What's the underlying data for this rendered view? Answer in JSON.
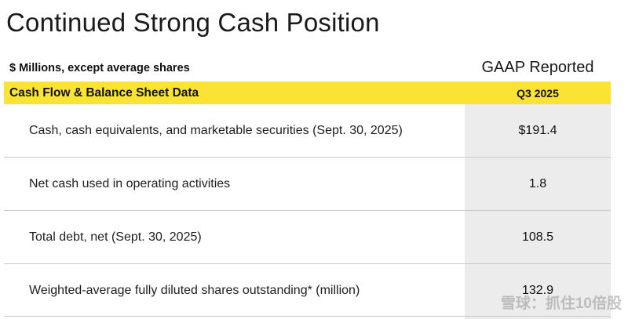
{
  "title": "Continued Strong Cash Position",
  "units_note": "$ Millions, except average shares",
  "column_header": "GAAP Reported",
  "section": {
    "label": "Cash Flow & Balance Sheet Data",
    "period": "Q3 2025"
  },
  "rows": [
    {
      "label": "Cash, cash equivalents, and marketable securities  (Sept. 30, 2025)",
      "value": "$191.4"
    },
    {
      "label": "Net cash used in operating activities",
      "value": "1.8"
    },
    {
      "label": "Total debt, net (Sept. 30, 2025)",
      "value": "108.5"
    },
    {
      "label": "Weighted-average fully diluted shares outstanding* (million)",
      "value": "132.9"
    }
  ],
  "colors": {
    "header_band": "#fbe333",
    "value_column": "#ececec",
    "divider": "#c9c9c9"
  },
  "watermark": "雪球：抓住10倍股"
}
